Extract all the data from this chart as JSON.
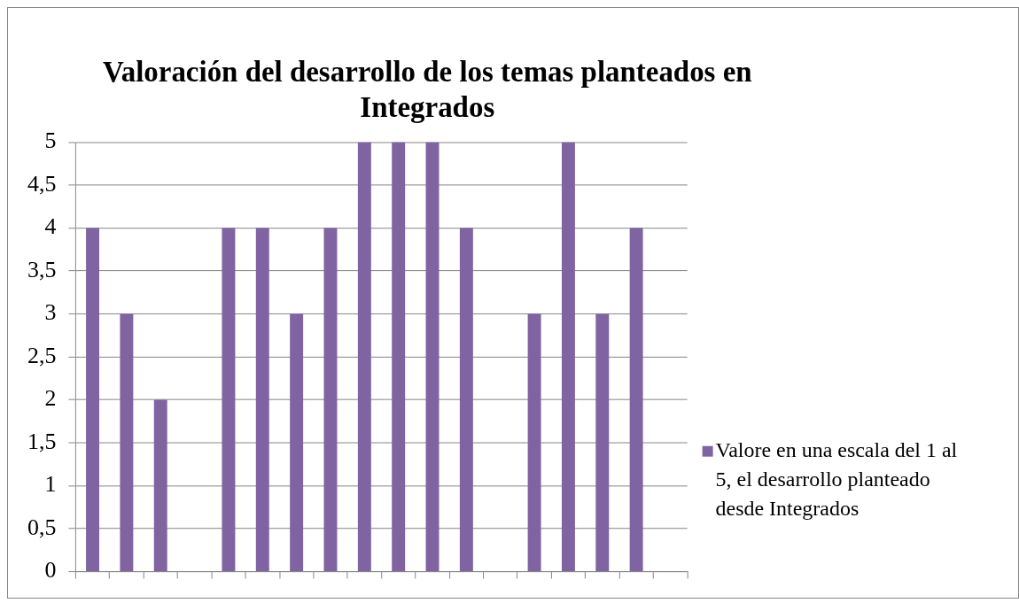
{
  "chart_data": {
    "type": "bar",
    "title": "Valoración del desarrollo de los temas planteados en Integrados",
    "categories": [
      null,
      null,
      null,
      null,
      null,
      null,
      null,
      null,
      null,
      null,
      null,
      null,
      null,
      null,
      null,
      null,
      null,
      null
    ],
    "series": [
      {
        "name": "Valore en una escala del 1 al 5, el desarrollo planteado desde Integrados",
        "color": "#8064a2",
        "values": [
          4,
          3,
          2,
          null,
          4,
          4,
          3,
          4,
          5,
          5,
          5,
          4,
          null,
          3,
          5,
          3,
          4,
          null
        ]
      }
    ],
    "ylim": [
      0,
      5
    ],
    "yticks": [
      0,
      {
        "value": 0.5,
        "label": "0,5"
      },
      1,
      {
        "value": 1.5,
        "label": "1,5"
      },
      2,
      {
        "value": 2.5,
        "label": "2,5"
      },
      3,
      {
        "value": 3.5,
        "label": "3,5"
      },
      4,
      {
        "value": 4.5,
        "label": "4,5"
      },
      5
    ],
    "grid": "y",
    "legend": "right",
    "tick_labels": "y"
  }
}
